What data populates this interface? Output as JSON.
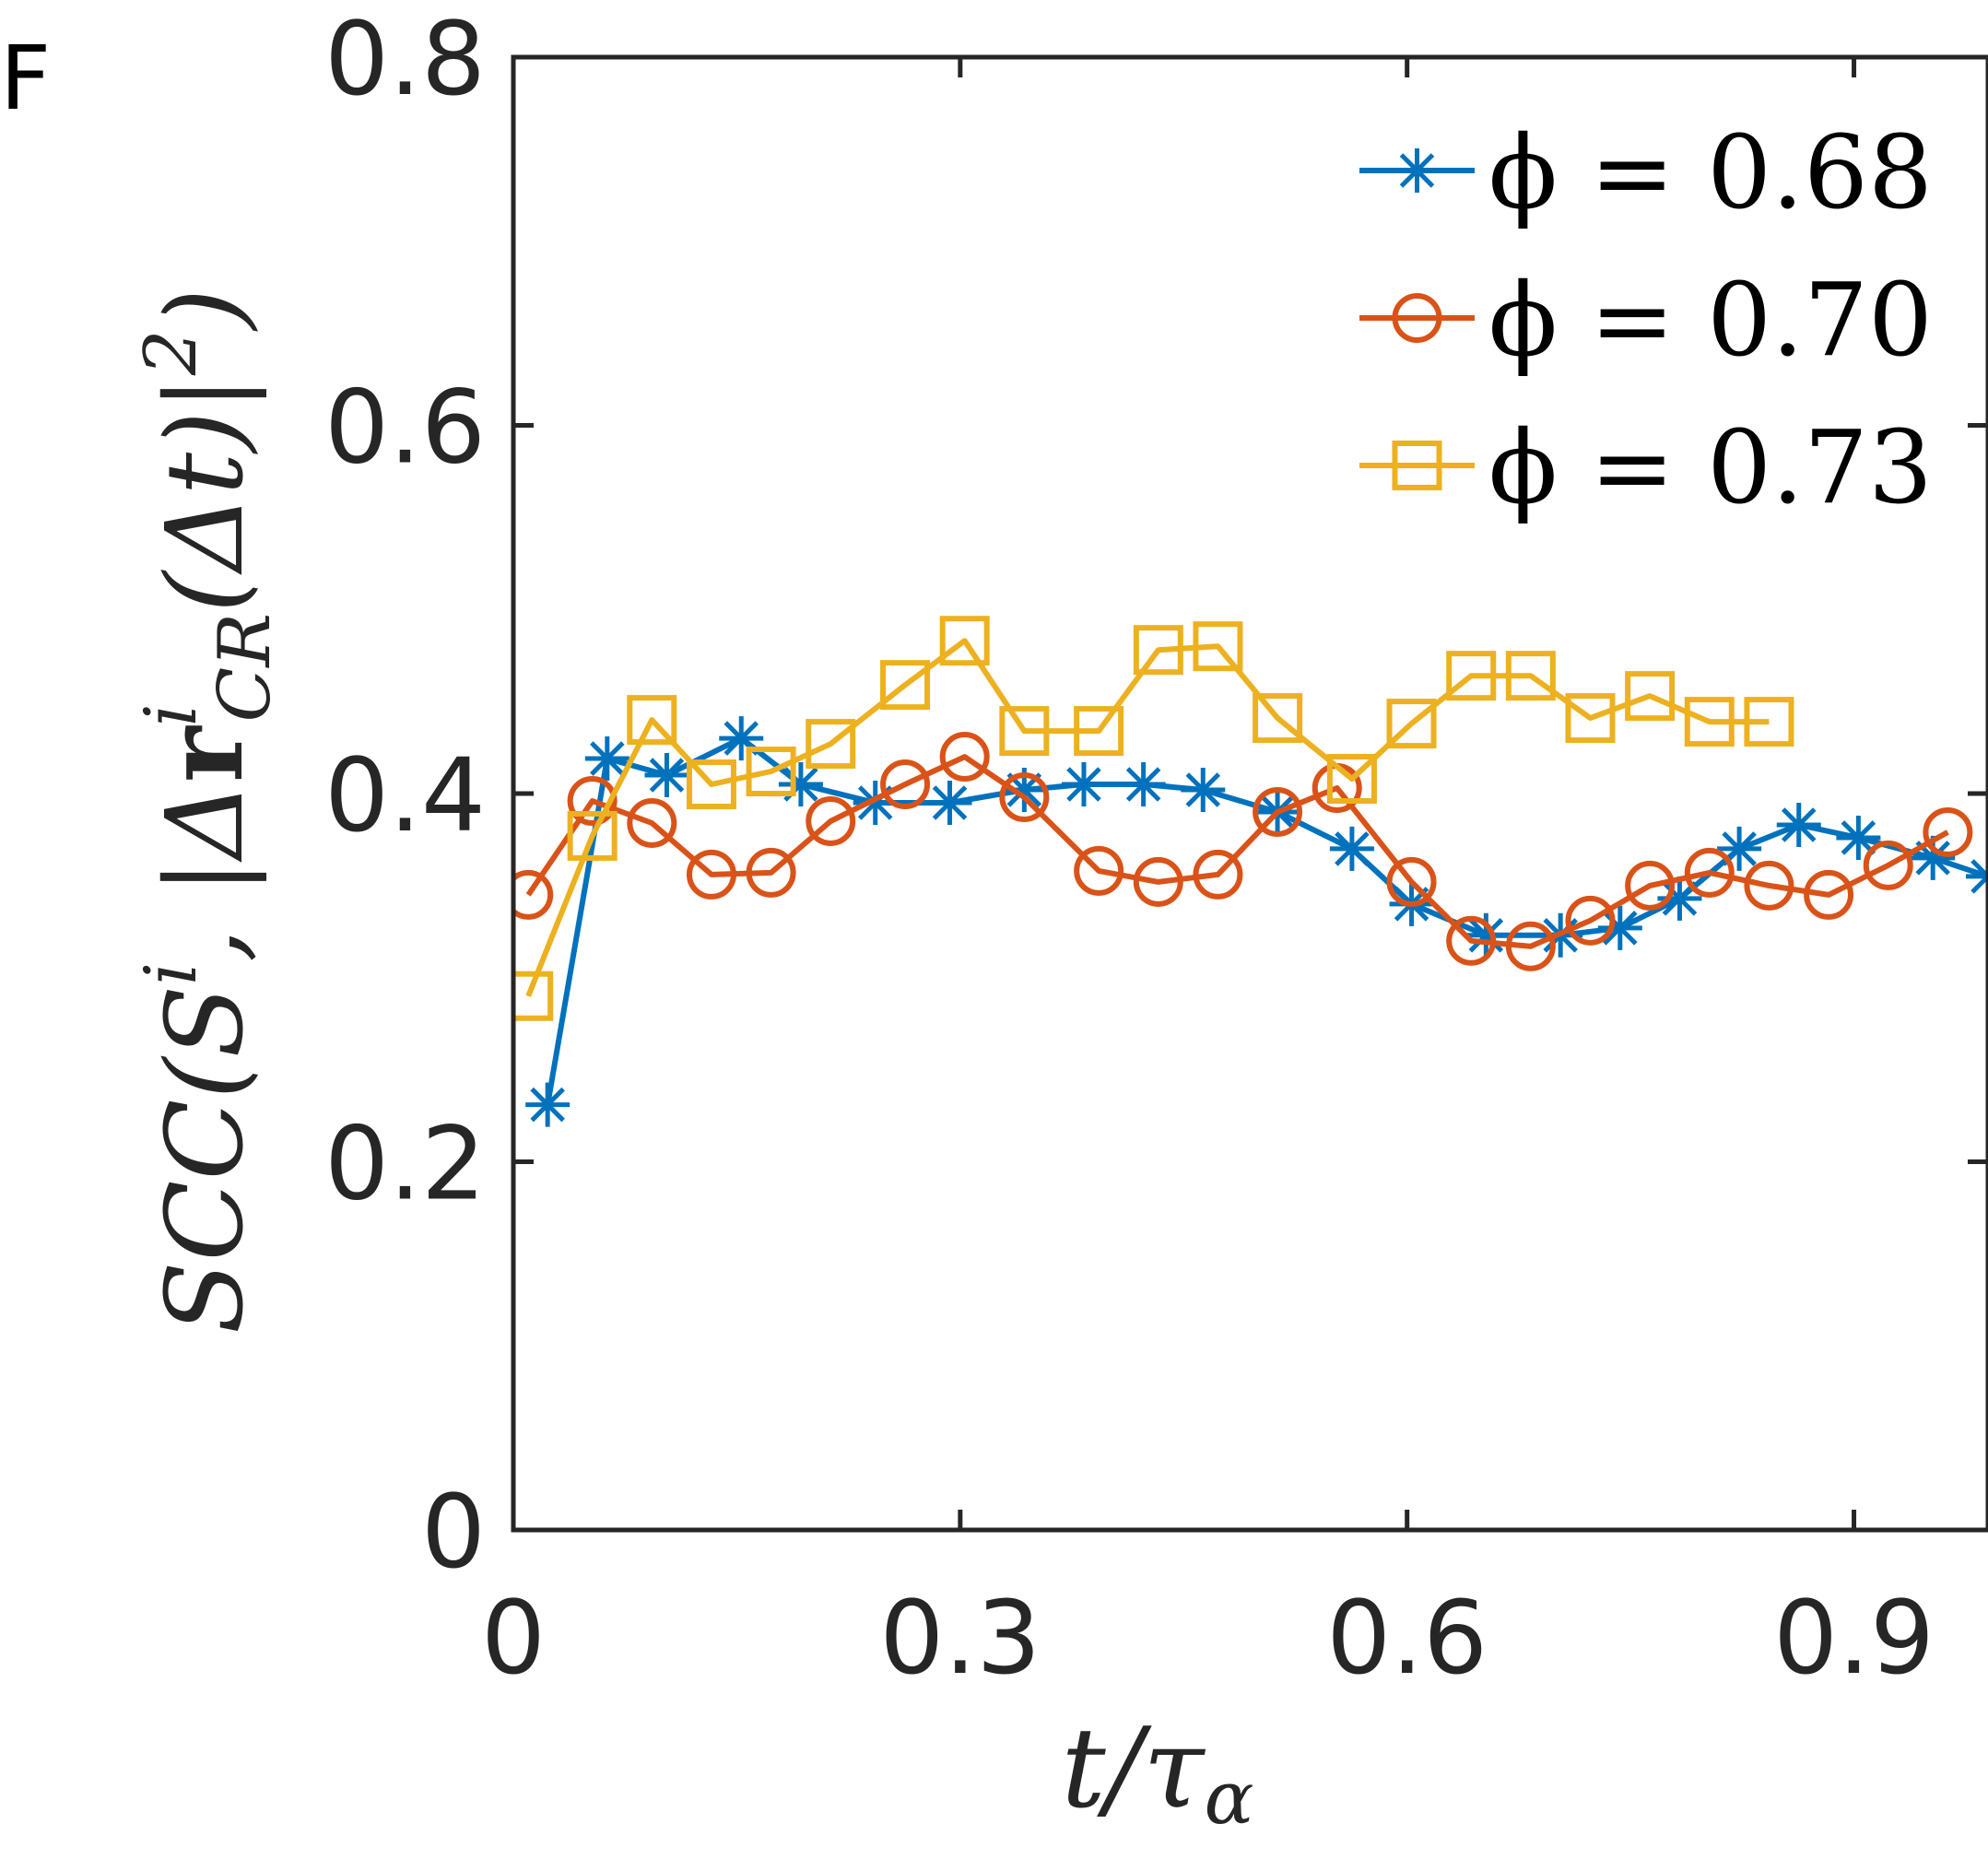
{
  "panel_label": "F",
  "colors": {
    "blue": "#0072BD",
    "orange": "#D95319",
    "yellow": "#EDB120",
    "axis": "#262626"
  },
  "chart_data": {
    "type": "line",
    "title": "",
    "xlabel": "t/τα",
    "ylabel": "SCC(Sⁱ, |ΔrⁱCR(Δt)|²)",
    "xlim": [
      0,
      0.99
    ],
    "ylim": [
      0,
      0.8
    ],
    "xticks": [
      0,
      0.3,
      0.6,
      0.9
    ],
    "xtick_labels": [
      "0",
      "0.3",
      "0.6",
      "0.9"
    ],
    "yticks": [
      0,
      0.2,
      0.4,
      0.6,
      0.8
    ],
    "ytick_labels": [
      "0",
      "0.2",
      "0.4",
      "0.6",
      "0.8"
    ],
    "grid": false,
    "legend_position": "top-right",
    "series": [
      {
        "name": "ϕ = 0.68",
        "color": "#0072BD",
        "marker": "star",
        "x": [
          0.023,
          0.063,
          0.103,
          0.153,
          0.193,
          0.243,
          0.293,
          0.343,
          0.383,
          0.423,
          0.463,
          0.513,
          0.563,
          0.603,
          0.653,
          0.703,
          0.743,
          0.783,
          0.823,
          0.863,
          0.903,
          0.953,
          0.99
        ],
        "y": [
          0.231,
          0.419,
          0.41,
          0.43,
          0.405,
          0.395,
          0.395,
          0.402,
          0.405,
          0.405,
          0.402,
          0.39,
          0.37,
          0.34,
          0.323,
          0.323,
          0.327,
          0.343,
          0.37,
          0.383,
          0.376,
          0.365,
          0.355
        ]
      },
      {
        "name": "ϕ = 0.70",
        "color": "#D95319",
        "marker": "circle",
        "x": [
          0.01,
          0.053,
          0.093,
          0.133,
          0.173,
          0.213,
          0.263,
          0.303,
          0.343,
          0.393,
          0.433,
          0.473,
          0.513,
          0.553,
          0.603,
          0.643,
          0.683,
          0.723,
          0.763,
          0.803,
          0.843,
          0.883,
          0.923,
          0.963
        ],
        "y": [
          0.345,
          0.396,
          0.384,
          0.356,
          0.357,
          0.385,
          0.405,
          0.42,
          0.398,
          0.358,
          0.352,
          0.356,
          0.39,
          0.403,
          0.352,
          0.32,
          0.317,
          0.331,
          0.35,
          0.357,
          0.35,
          0.345,
          0.361,
          0.379
        ]
      },
      {
        "name": "ϕ = 0.73",
        "color": "#EDB120",
        "marker": "square",
        "x": [
          0.01,
          0.053,
          0.093,
          0.133,
          0.173,
          0.213,
          0.263,
          0.303,
          0.343,
          0.393,
          0.433,
          0.473,
          0.513,
          0.563,
          0.603,
          0.643,
          0.683,
          0.723,
          0.763,
          0.803,
          0.843
        ],
        "y": [
          0.29,
          0.377,
          0.44,
          0.405,
          0.412,
          0.427,
          0.459,
          0.483,
          0.434,
          0.434,
          0.478,
          0.48,
          0.441,
          0.408,
          0.438,
          0.464,
          0.464,
          0.441,
          0.453,
          0.439,
          0.439
        ]
      }
    ]
  }
}
